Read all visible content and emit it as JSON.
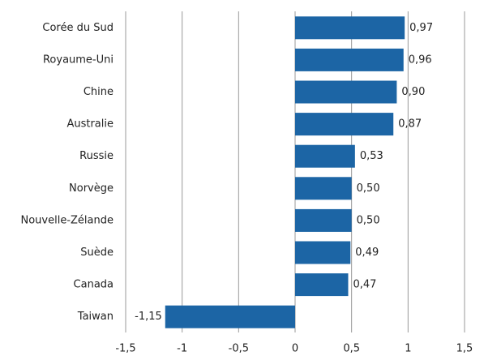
{
  "chart_data": {
    "type": "hbar",
    "categories": [
      "Corée du Sud",
      "Royaume-Uni",
      "Chine",
      "Australie",
      "Russie",
      "Norvège",
      "Nouvelle-Zélande",
      "Suède",
      "Canada",
      "Taiwan"
    ],
    "values": [
      0.97,
      0.96,
      0.9,
      0.87,
      0.53,
      0.5,
      0.5,
      0.49,
      0.47,
      -1.15
    ],
    "value_labels": [
      "0,97",
      "0,96",
      "0,90",
      "0,87",
      "0,53",
      "0,50",
      "0,50",
      "0,49",
      "0,47",
      "-1,15"
    ],
    "color": "#1c65a5",
    "xlim": [
      -1.5,
      1.5
    ],
    "xticks": [
      {
        "value": -1.5,
        "label": "-1,5"
      },
      -1,
      {
        "value": -0.5,
        "label": "-0,5"
      },
      0,
      {
        "value": 0.5,
        "label": "0,5"
      },
      1,
      {
        "value": 1.5,
        "label": "1,5"
      }
    ],
    "grid": true
  }
}
